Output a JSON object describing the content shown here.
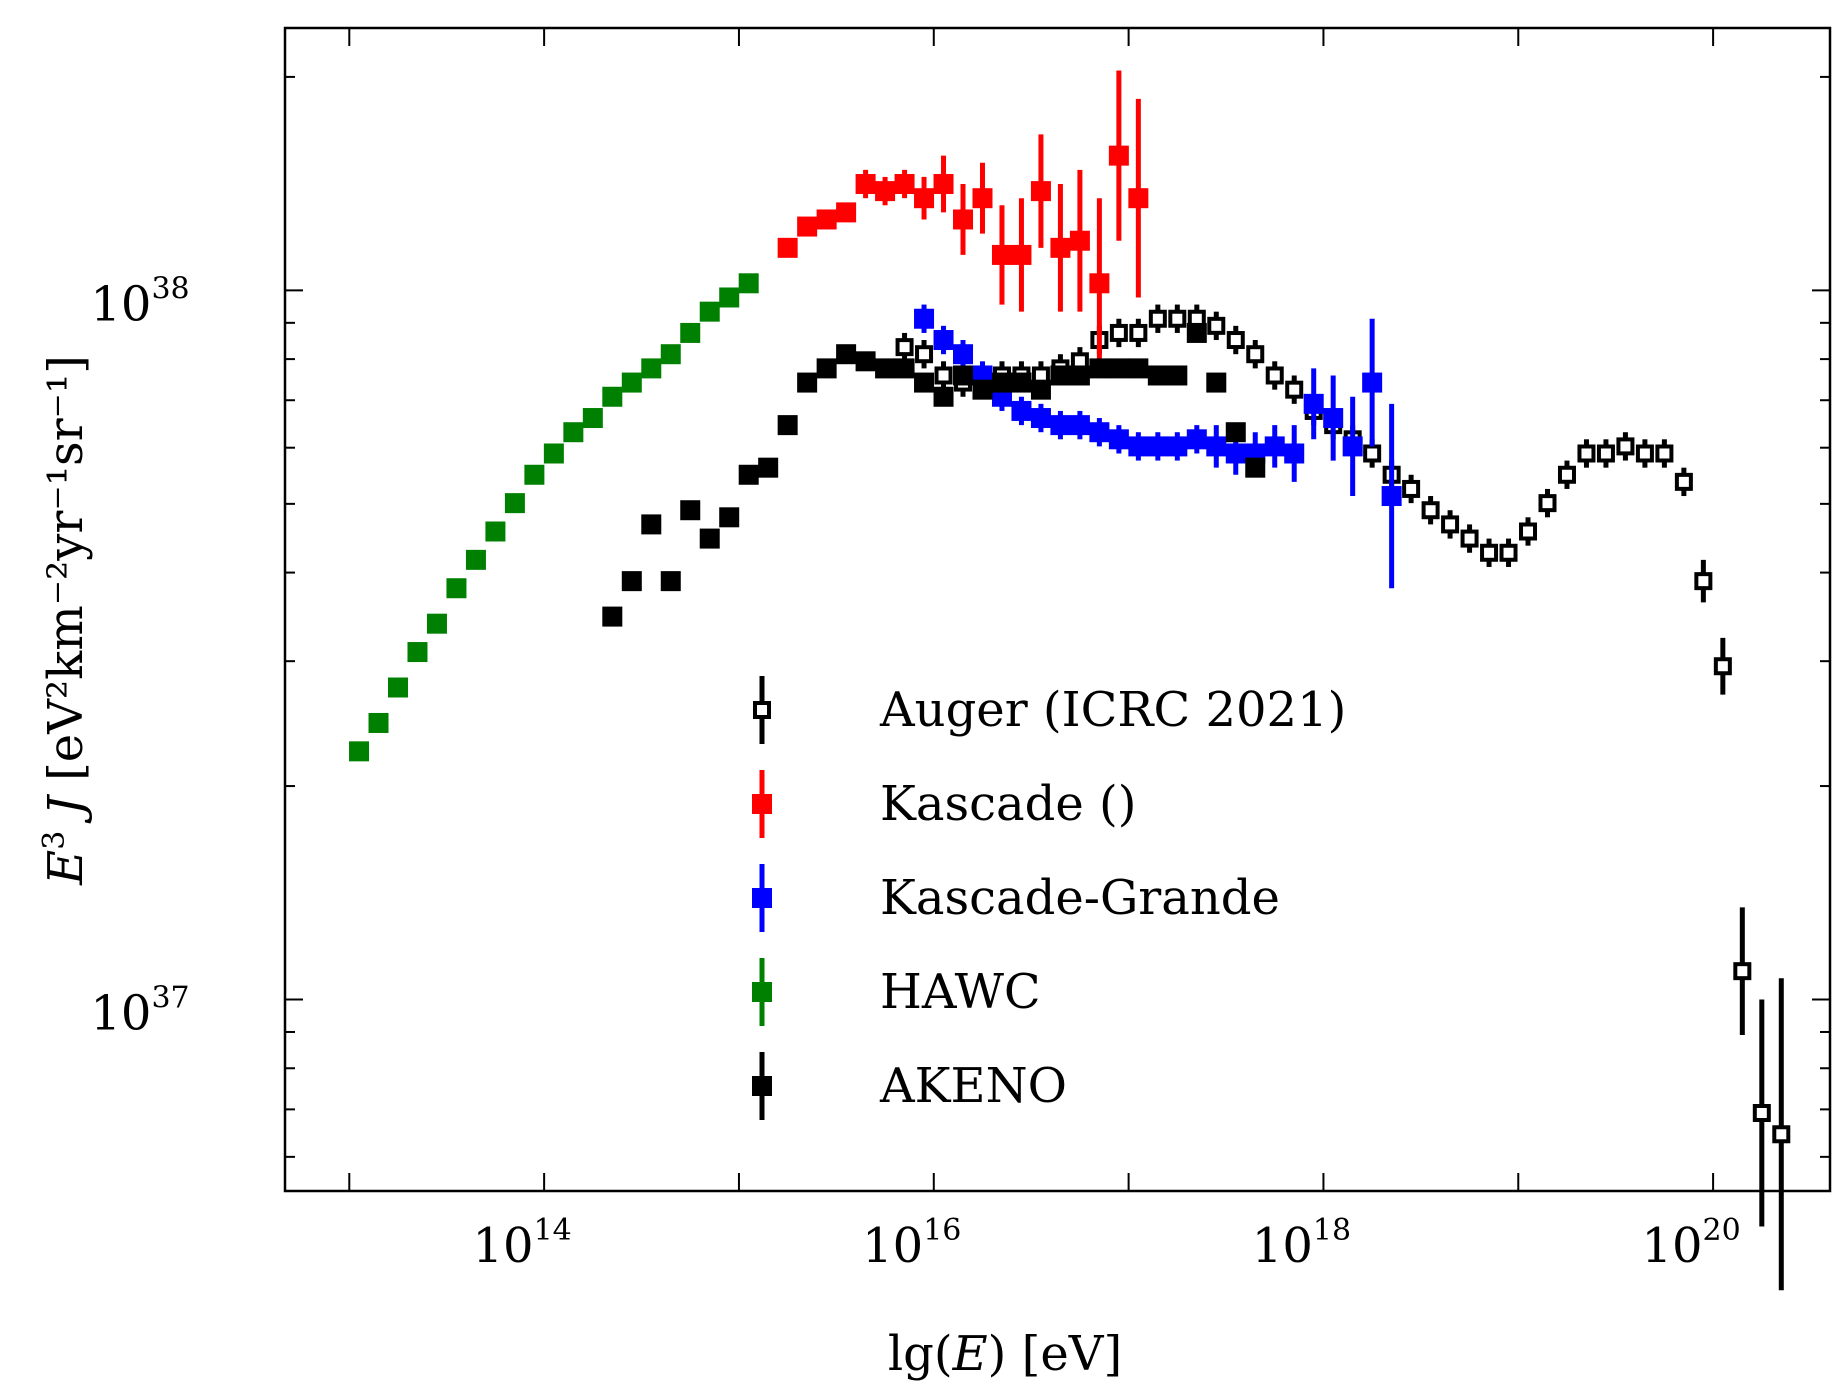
{
  "chart_data": {
    "type": "scatter",
    "xlabel": {
      "pre": "lg(",
      "var": "E",
      "post": ")  [eV]"
    },
    "ylabel": {
      "pre": "",
      "var": "E",
      "sup1": "3",
      "var2": " J",
      "unit": "  [eV²km⁻²yr⁻¹sr⁻¹]"
    },
    "x_scale": "log10",
    "y_scale": "log10",
    "xlim": [
      12.67,
      20.6
    ],
    "ylim": [
      36.73,
      38.37
    ],
    "x_ticks": [
      {
        "base": "10",
        "exp": "14",
        "value": 14
      },
      {
        "base": "10",
        "exp": "16",
        "value": 16
      },
      {
        "base": "10",
        "exp": "18",
        "value": 18
      },
      {
        "base": "10",
        "exp": "20",
        "value": 20
      }
    ],
    "y_ticks": [
      {
        "base": "10",
        "exp": "37",
        "value": 37
      },
      {
        "base": "10",
        "exp": "38",
        "value": 38
      }
    ],
    "legend_position": "lower-center",
    "series": [
      {
        "name": "Auger (ICRC 2021)",
        "color": "#000000",
        "marker": "open-square",
        "points": [
          [
            15.85,
            37.92,
            0.02
          ],
          [
            15.95,
            37.91,
            0.02
          ],
          [
            16.05,
            37.88,
            0.02
          ],
          [
            16.15,
            37.87,
            0.02
          ],
          [
            16.25,
            37.87,
            0.02
          ],
          [
            16.35,
            37.88,
            0.02
          ],
          [
            16.45,
            37.88,
            0.02
          ],
          [
            16.55,
            37.88,
            0.02
          ],
          [
            16.65,
            37.89,
            0.02
          ],
          [
            16.75,
            37.9,
            0.02
          ],
          [
            16.85,
            37.93,
            0.02
          ],
          [
            16.95,
            37.94,
            0.02
          ],
          [
            17.05,
            37.94,
            0.02
          ],
          [
            17.15,
            37.96,
            0.02
          ],
          [
            17.25,
            37.96,
            0.02
          ],
          [
            17.35,
            37.96,
            0.02
          ],
          [
            17.45,
            37.95,
            0.02
          ],
          [
            17.55,
            37.93,
            0.02
          ],
          [
            17.65,
            37.91,
            0.02
          ],
          [
            17.75,
            37.88,
            0.02
          ],
          [
            17.85,
            37.86,
            0.02
          ],
          [
            17.95,
            37.83,
            0.02
          ],
          [
            18.05,
            37.81,
            0.02
          ],
          [
            18.15,
            37.79,
            0.02
          ],
          [
            18.25,
            37.77,
            0.02
          ],
          [
            18.35,
            37.74,
            0.02
          ],
          [
            18.45,
            37.72,
            0.02
          ],
          [
            18.55,
            37.69,
            0.02
          ],
          [
            18.65,
            37.67,
            0.02
          ],
          [
            18.75,
            37.65,
            0.02
          ],
          [
            18.85,
            37.63,
            0.02
          ],
          [
            18.95,
            37.63,
            0.02
          ],
          [
            19.05,
            37.66,
            0.02
          ],
          [
            19.15,
            37.7,
            0.02
          ],
          [
            19.25,
            37.74,
            0.02
          ],
          [
            19.35,
            37.77,
            0.02
          ],
          [
            19.45,
            37.77,
            0.02
          ],
          [
            19.55,
            37.78,
            0.02
          ],
          [
            19.65,
            37.77,
            0.02
          ],
          [
            19.75,
            37.77,
            0.02
          ],
          [
            19.85,
            37.73,
            0.02
          ],
          [
            19.95,
            37.59,
            0.03
          ],
          [
            20.05,
            37.47,
            0.04
          ],
          [
            20.15,
            37.04,
            0.09
          ],
          [
            20.25,
            36.84,
            0.16
          ],
          [
            20.35,
            36.81,
            0.22
          ]
        ]
      },
      {
        "name": "Kascade ()",
        "color": "#ff0000",
        "marker": "filled-square",
        "points": [
          [
            15.25,
            38.06,
            0.01
          ],
          [
            15.35,
            38.09,
            0.01
          ],
          [
            15.45,
            38.1,
            0.01
          ],
          [
            15.55,
            38.11,
            0.01
          ],
          [
            15.65,
            38.15,
            0.02
          ],
          [
            15.75,
            38.14,
            0.02
          ],
          [
            15.85,
            38.15,
            0.02
          ],
          [
            15.95,
            38.13,
            0.03
          ],
          [
            16.05,
            38.15,
            0.04
          ],
          [
            16.15,
            38.1,
            0.05
          ],
          [
            16.25,
            38.13,
            0.05
          ],
          [
            16.35,
            38.05,
            0.07
          ],
          [
            16.45,
            38.05,
            0.08
          ],
          [
            16.55,
            38.14,
            0.08
          ],
          [
            16.65,
            38.06,
            0.09
          ],
          [
            16.75,
            38.07,
            0.1
          ],
          [
            16.85,
            38.01,
            0.12
          ],
          [
            16.95,
            38.19,
            0.12
          ],
          [
            17.05,
            38.13,
            0.14
          ]
        ]
      },
      {
        "name": "Kascade-Grande",
        "color": "#0000ff",
        "marker": "filled-square",
        "points": [
          [
            15.95,
            37.96,
            0.02
          ],
          [
            16.05,
            37.93,
            0.02
          ],
          [
            16.15,
            37.91,
            0.02
          ],
          [
            16.25,
            37.88,
            0.02
          ],
          [
            16.35,
            37.85,
            0.02
          ],
          [
            16.45,
            37.83,
            0.02
          ],
          [
            16.55,
            37.82,
            0.02
          ],
          [
            16.65,
            37.81,
            0.02
          ],
          [
            16.75,
            37.81,
            0.02
          ],
          [
            16.85,
            37.8,
            0.02
          ],
          [
            16.95,
            37.79,
            0.02
          ],
          [
            17.05,
            37.78,
            0.02
          ],
          [
            17.15,
            37.78,
            0.02
          ],
          [
            17.25,
            37.78,
            0.02
          ],
          [
            17.35,
            37.79,
            0.02
          ],
          [
            17.45,
            37.78,
            0.03
          ],
          [
            17.55,
            37.77,
            0.03
          ],
          [
            17.65,
            37.77,
            0.03
          ],
          [
            17.75,
            37.78,
            0.03
          ],
          [
            17.85,
            37.77,
            0.04
          ],
          [
            17.95,
            37.84,
            0.05
          ],
          [
            18.05,
            37.82,
            0.06
          ],
          [
            18.15,
            37.78,
            0.07
          ],
          [
            18.25,
            37.87,
            0.09
          ],
          [
            18.35,
            37.71,
            0.13
          ]
        ]
      },
      {
        "name": "HAWC",
        "color": "#008000",
        "marker": "filled-square",
        "points": [
          [
            13.05,
            37.35,
            0.01
          ],
          [
            13.15,
            37.39,
            0.01
          ],
          [
            13.25,
            37.44,
            0.01
          ],
          [
            13.35,
            37.49,
            0.01
          ],
          [
            13.45,
            37.53,
            0.01
          ],
          [
            13.55,
            37.58,
            0.01
          ],
          [
            13.65,
            37.62,
            0.01
          ],
          [
            13.75,
            37.66,
            0.01
          ],
          [
            13.85,
            37.7,
            0.01
          ],
          [
            13.95,
            37.74,
            0.01
          ],
          [
            14.05,
            37.77,
            0.01
          ],
          [
            14.15,
            37.8,
            0.01
          ],
          [
            14.25,
            37.82,
            0.01
          ],
          [
            14.35,
            37.85,
            0.01
          ],
          [
            14.45,
            37.87,
            0.01
          ],
          [
            14.55,
            37.89,
            0.01
          ],
          [
            14.65,
            37.91,
            0.01
          ],
          [
            14.75,
            37.94,
            0.01
          ],
          [
            14.85,
            37.97,
            0.01
          ],
          [
            14.95,
            37.99,
            0.01
          ],
          [
            15.05,
            38.01,
            0.01
          ]
        ]
      },
      {
        "name": "AKENO",
        "color": "#000000",
        "marker": "filled-square",
        "points": [
          [
            14.35,
            37.54,
            0.01
          ],
          [
            14.45,
            37.59,
            0.01
          ],
          [
            14.55,
            37.67,
            0.01
          ],
          [
            14.65,
            37.59,
            0.01
          ],
          [
            14.75,
            37.69,
            0.01
          ],
          [
            14.85,
            37.65,
            0.01
          ],
          [
            14.95,
            37.68,
            0.01
          ],
          [
            15.05,
            37.74,
            0.01
          ],
          [
            15.15,
            37.75,
            0.01
          ],
          [
            15.25,
            37.81,
            0.01
          ],
          [
            15.35,
            37.87,
            0.01
          ],
          [
            15.45,
            37.89,
            0.01
          ],
          [
            15.55,
            37.91,
            0.01
          ],
          [
            15.65,
            37.9,
            0.01
          ],
          [
            15.75,
            37.89,
            0.01
          ],
          [
            15.85,
            37.89,
            0.01
          ],
          [
            15.95,
            37.87,
            0.01
          ],
          [
            16.05,
            37.85,
            0.01
          ],
          [
            16.15,
            37.88,
            0.01
          ],
          [
            16.25,
            37.86,
            0.01
          ],
          [
            16.35,
            37.87,
            0.01
          ],
          [
            16.45,
            37.87,
            0.01
          ],
          [
            16.55,
            37.86,
            0.01
          ],
          [
            16.65,
            37.88,
            0.01
          ],
          [
            16.75,
            37.88,
            0.01
          ],
          [
            16.85,
            37.89,
            0.01
          ],
          [
            16.95,
            37.89,
            0.01
          ],
          [
            17.05,
            37.89,
            0.01
          ],
          [
            17.15,
            37.88,
            0.01
          ],
          [
            17.25,
            37.88,
            0.01
          ],
          [
            17.35,
            37.94,
            0.01
          ],
          [
            17.45,
            37.87,
            0.01
          ],
          [
            17.55,
            37.8,
            0.01
          ],
          [
            17.65,
            37.75,
            0.01
          ]
        ]
      }
    ]
  }
}
